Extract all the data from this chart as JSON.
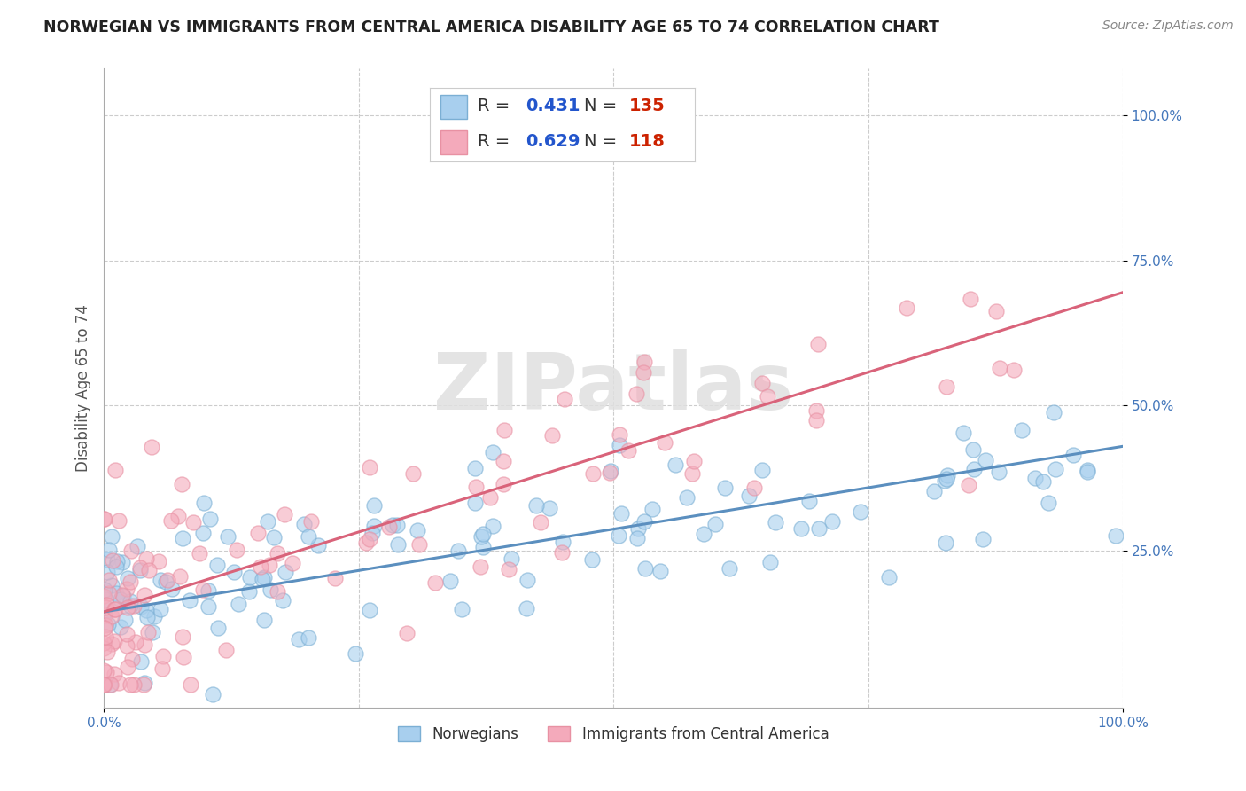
{
  "title": "NORWEGIAN VS IMMIGRANTS FROM CENTRAL AMERICA DISABILITY AGE 65 TO 74 CORRELATION CHART",
  "source": "Source: ZipAtlas.com",
  "ylabel": "Disability Age 65 to 74",
  "xlabel": "",
  "xlim": [
    0.0,
    1.0
  ],
  "ylim": [
    -0.02,
    1.08
  ],
  "xtick_positions": [
    0.0,
    1.0
  ],
  "xticklabels": [
    "0.0%",
    "100.0%"
  ],
  "ytick_positions": [
    0.25,
    0.5,
    0.75,
    1.0
  ],
  "yticklabels": [
    "25.0%",
    "50.0%",
    "75.0%",
    "100.0%"
  ],
  "legend_labels": [
    "Norwegians",
    "Immigrants from Central America"
  ],
  "blue_color": "#A8CFEE",
  "pink_color": "#F4AABB",
  "blue_edge_color": "#7BAFD4",
  "pink_edge_color": "#E891A3",
  "blue_line_color": "#5B8FBF",
  "pink_line_color": "#D9637A",
  "R_blue": 0.431,
  "N_blue": 135,
  "R_pink": 0.629,
  "N_pink": 118,
  "background_color": "#FFFFFF",
  "grid_color": "#CCCCCC",
  "watermark_text": "ZIPatlas",
  "watermark_color": "#E0E0E0",
  "title_color": "#222222",
  "label_color": "#555555",
  "axis_label_color": "#4477BB",
  "legend_R_color": "#2255CC",
  "legend_N_color": "#CC2200",
  "blue_intercept": 0.145,
  "blue_slope": 0.285,
  "pink_intercept": 0.145,
  "pink_slope": 0.55,
  "seed_blue": 42,
  "seed_pink": 7
}
